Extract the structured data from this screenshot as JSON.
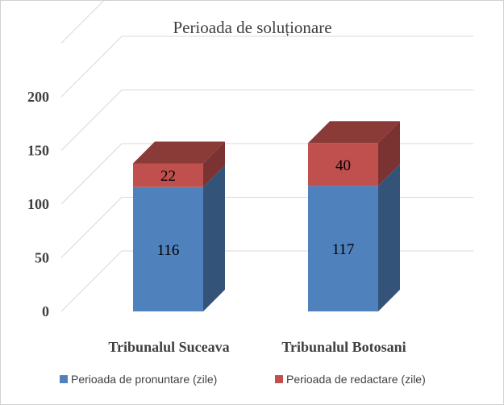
{
  "chart_data": {
    "type": "bar",
    "stacked": true,
    "three_d": true,
    "title": "Perioada de soluționare",
    "categories": [
      "Tribunalul Suceava",
      "Tribunalul Botosani"
    ],
    "series": [
      {
        "name": "Perioada de pronuntare (zile)",
        "values": [
          116,
          117
        ],
        "color": "#4f81bd"
      },
      {
        "name": "Perioada de redactare (zile)",
        "values": [
          22,
          40
        ],
        "color": "#c0504d"
      }
    ],
    "yticks": [
      0,
      50,
      100,
      150,
      200
    ],
    "ylim": [
      0,
      250
    ],
    "grid": true,
    "legend_position": "bottom"
  }
}
